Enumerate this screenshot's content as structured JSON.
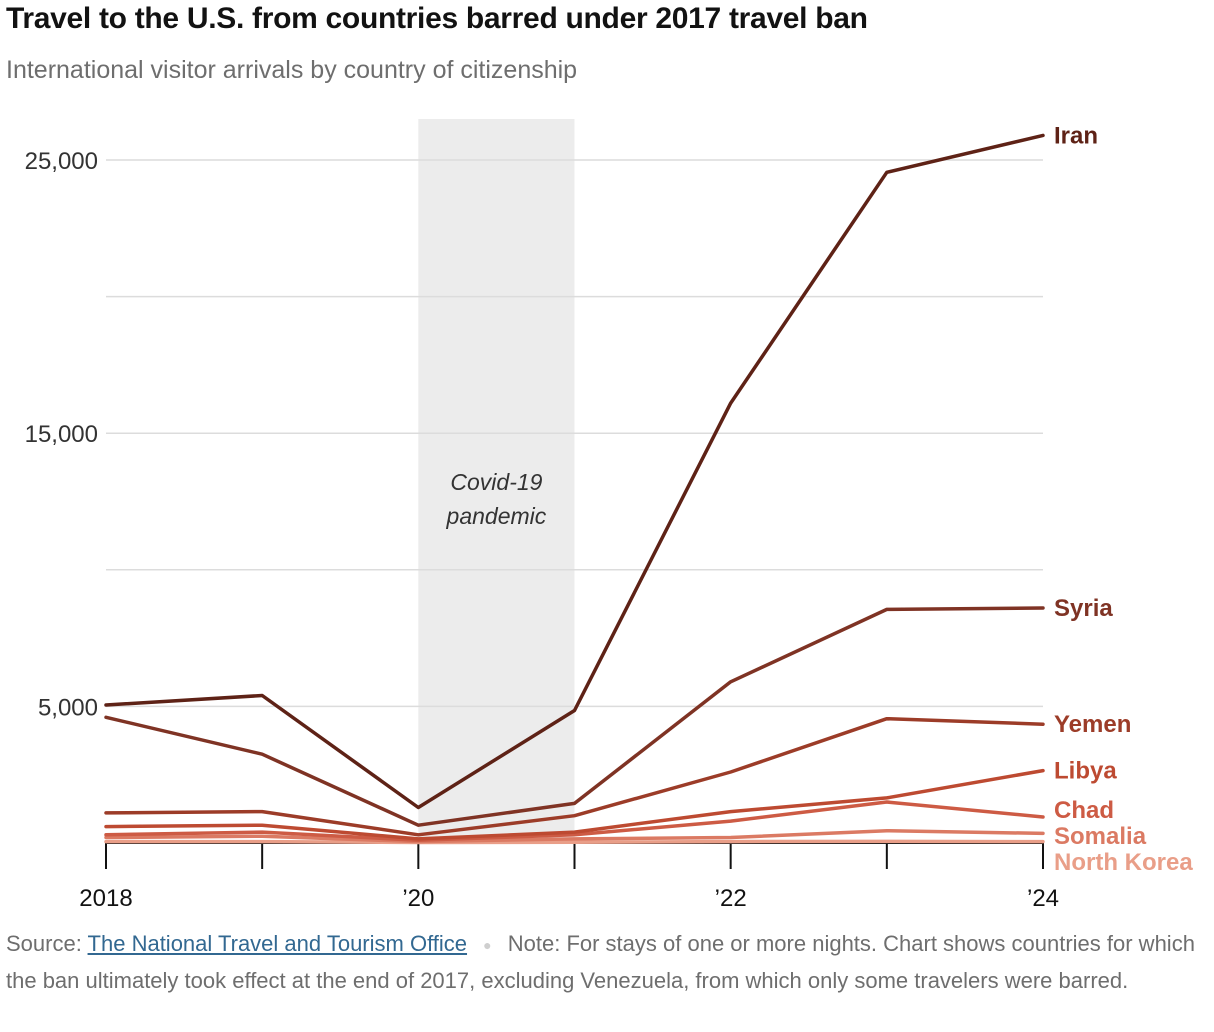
{
  "header": {
    "title": "Travel to the U.S. from countries barred under 2017 travel ban",
    "subtitle": "International visitor arrivals by country of citizenship"
  },
  "footer": {
    "source_label": "Source:",
    "source_link": "The National Travel and Tourism Office",
    "note": "Note: For stays of one or more nights. Chart shows countries for which the ban ultimately took effect at the end of 2017, excluding Venezuela, from which only some travelers were barred."
  },
  "chart_data": {
    "type": "line",
    "title": "Travel to the U.S. from countries barred under 2017 travel ban",
    "subtitle": "International visitor arrivals by country of citizenship",
    "xlabel": "",
    "ylabel": "",
    "x": [
      2018,
      2019,
      2020,
      2021,
      2022,
      2023,
      2024
    ],
    "x_tick_labels": [
      "2018",
      "’20",
      "’22",
      "’24"
    ],
    "x_tick_values": [
      2018,
      2020,
      2022,
      2024
    ],
    "y_tick_labels": [
      "25,000",
      "15,000",
      "5,000"
    ],
    "y_tick_values": [
      25000,
      15000,
      5000
    ],
    "y_gridlines": [
      5000,
      10000,
      15000,
      20000,
      25000
    ],
    "ylim": [
      0,
      26500
    ],
    "xlim": [
      2018,
      2024
    ],
    "shaded_region": {
      "x_start": 2020,
      "x_end": 2021,
      "label_line1": "Covid-19",
      "label_line2": "pandemic"
    },
    "series": [
      {
        "name": "Iran",
        "color": "#5e2216",
        "values": [
          5050,
          5400,
          1300,
          4850,
          16100,
          24550,
          25900
        ]
      },
      {
        "name": "Syria",
        "color": "#7f3324",
        "values": [
          4600,
          3250,
          650,
          1450,
          5900,
          8550,
          8600
        ]
      },
      {
        "name": "Yemen",
        "color": "#9c3c28",
        "values": [
          1100,
          1150,
          300,
          1000,
          2600,
          4550,
          4350
        ]
      },
      {
        "name": "Libya",
        "color": "#bd4a31",
        "values": [
          600,
          650,
          150,
          400,
          1150,
          1650,
          2650
        ]
      },
      {
        "name": "Chad",
        "color": "#cd5b44",
        "values": [
          300,
          400,
          100,
          300,
          800,
          1500,
          950
        ]
      },
      {
        "name": "Somalia",
        "color": "#db7a63",
        "values": [
          200,
          250,
          50,
          150,
          200,
          450,
          350
        ]
      },
      {
        "name": "North Korea",
        "color": "#e99e88",
        "values": [
          50,
          50,
          20,
          30,
          50,
          60,
          50
        ]
      }
    ]
  }
}
